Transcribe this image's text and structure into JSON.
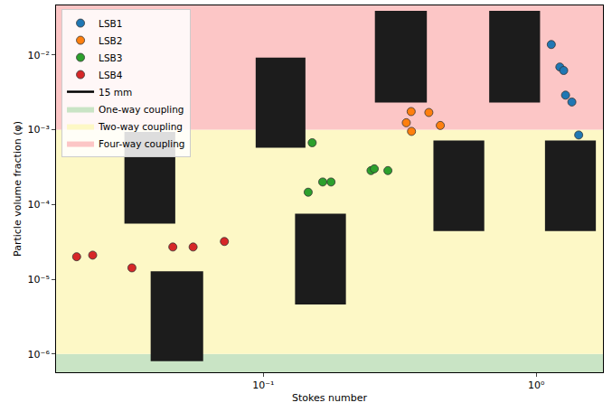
{
  "chart_data": {
    "type": "scatter",
    "x_label": "Stokes number",
    "y_label": "Particle volume fraction (φ)",
    "log": true,
    "grid": false,
    "legend": "upper left",
    "xlim": [
      0.0174,
      1.755
    ],
    "ylim": [
      5.7e-07,
      0.046
    ],
    "xticks": [
      {
        "value": 0.1,
        "label": "10⁻¹"
      },
      {
        "value": 1,
        "label": "10⁰"
      }
    ],
    "yticks": [
      {
        "value": 1e-06,
        "label": "10⁻⁶"
      },
      {
        "value": 1e-05,
        "label": "10⁻⁵"
      },
      {
        "value": 0.0001,
        "label": "10⁻⁴"
      },
      {
        "value": 0.001,
        "label": "10⁻³"
      },
      {
        "value": 0.01,
        "label": "10⁻²"
      }
    ],
    "series": [
      {
        "name": "LSB1",
        "color": "#1f77b4",
        "marker": "circle",
        "x": [
          1.135,
          1.22,
          1.26,
          1.28,
          1.35,
          1.43
        ],
        "values": [
          0.0138,
          0.0069,
          0.0062,
          0.0029,
          0.00235,
          0.00085
        ]
      },
      {
        "name": "LSB2",
        "color": "#ff7f0e",
        "marker": "circle",
        "x": [
          0.348,
          0.334,
          0.349,
          0.404,
          0.445
        ],
        "values": [
          0.00175,
          0.00124,
          0.00095,
          0.0017,
          0.00114
        ]
      },
      {
        "name": "LSB3",
        "color": "#2ca02c",
        "marker": "circle",
        "x": [
          0.151,
          0.146,
          0.165,
          0.177,
          0.248,
          0.255,
          0.286
        ],
        "values": [
          0.00067,
          0.000146,
          0.0002,
          0.0002,
          0.000284,
          0.0003,
          0.000284
        ]
      },
      {
        "name": "LSB4",
        "color": "#d62728",
        "marker": "circle",
        "x": [
          0.0207,
          0.0237,
          0.033,
          0.0466,
          0.0553,
          0.072
        ],
        "values": [
          2e-05,
          2.1e-05,
          1.42e-05,
          2.7e-05,
          2.7e-05,
          3.2e-05
        ]
      }
    ],
    "scale_bar": {
      "name": "15 mm",
      "color": "#000000",
      "line_style": "solid"
    },
    "regions": [
      {
        "name": "One-way coupling",
        "color": "#c9e4c5",
        "y": [
          5.7e-07,
          1e-06
        ]
      },
      {
        "name": "Two-way coupling",
        "color": "#fdf8c6",
        "y": [
          1e-06,
          0.001
        ]
      },
      {
        "name": "Four-way coupling",
        "color": "#fcc6c6",
        "y": [
          0.001,
          0.046
        ]
      }
    ]
  }
}
